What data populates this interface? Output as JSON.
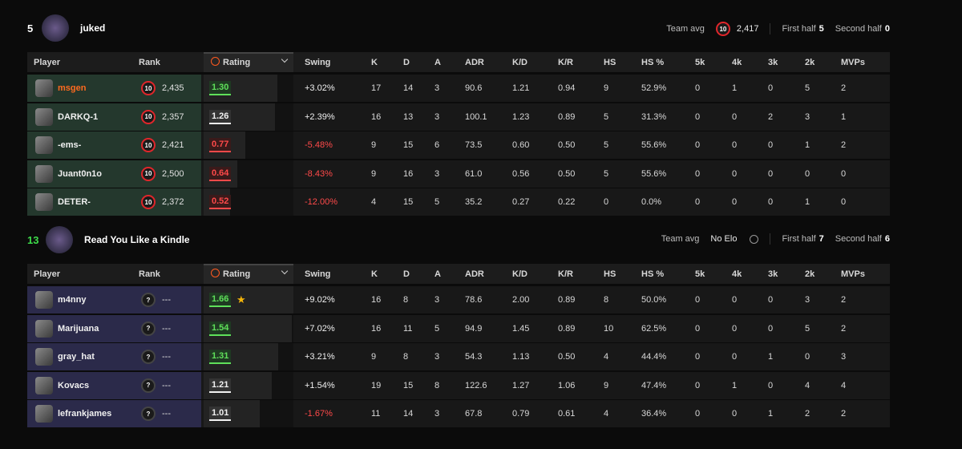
{
  "columns": [
    "Player",
    "Rank",
    "Rating",
    "Swing",
    "K",
    "D",
    "A",
    "ADR",
    "K/D",
    "K/R",
    "HS",
    "HS %",
    "5k",
    "4k",
    "3k",
    "2k",
    "MVPs"
  ],
  "teams": [
    {
      "score": "5",
      "name": "juked",
      "team_avg_label": "Team avg",
      "avg_rank": "10",
      "avg_elo": "2,417",
      "first_half_label": "First half",
      "first_half": "5",
      "second_half_label": "Second half",
      "second_half": "0",
      "rows": [
        {
          "player": "msgen",
          "rank": "10",
          "elo": "2,435",
          "rating": "1.30",
          "swing": "+3.02%",
          "stats": [
            "17",
            "14",
            "3",
            "90.6",
            "1.21",
            "0.94",
            "9",
            "52.9%",
            "0",
            "1",
            "0",
            "5",
            "2"
          ]
        },
        {
          "player": "DARKQ-1",
          "rank": "10",
          "elo": "2,357",
          "rating": "1.26",
          "swing": "+2.39%",
          "stats": [
            "16",
            "13",
            "3",
            "100.1",
            "1.23",
            "0.89",
            "5",
            "31.3%",
            "0",
            "0",
            "2",
            "3",
            "1"
          ]
        },
        {
          "player": "-ems-",
          "rank": "10",
          "elo": "2,421",
          "rating": "0.77",
          "swing": "-5.48%",
          "stats": [
            "9",
            "15",
            "6",
            "73.5",
            "0.60",
            "0.50",
            "5",
            "55.6%",
            "0",
            "0",
            "0",
            "1",
            "2"
          ]
        },
        {
          "player": "Juant0n1o",
          "rank": "10",
          "elo": "2,500",
          "rating": "0.64",
          "swing": "-8.43%",
          "stats": [
            "9",
            "16",
            "3",
            "61.0",
            "0.56",
            "0.50",
            "5",
            "55.6%",
            "0",
            "0",
            "0",
            "0",
            "0"
          ]
        },
        {
          "player": "DETER-",
          "rank": "10",
          "elo": "2,372",
          "rating": "0.52",
          "swing": "-12.00%",
          "stats": [
            "4",
            "15",
            "5",
            "35.2",
            "0.27",
            "0.22",
            "0",
            "0.0%",
            "0",
            "0",
            "0",
            "1",
            "0"
          ]
        }
      ]
    },
    {
      "score": "13",
      "name": "Read You Like a Kindle",
      "team_avg_label": "Team avg",
      "avg_elo": "No Elo",
      "first_half_label": "First half",
      "first_half": "7",
      "second_half_label": "Second half",
      "second_half": "6",
      "rows": [
        {
          "player": "m4nny",
          "rank": "?",
          "elo": "---",
          "rating": "1.66",
          "swing": "+9.02%",
          "stats": [
            "16",
            "8",
            "3",
            "78.6",
            "2.00",
            "0.89",
            "8",
            "50.0%",
            "0",
            "0",
            "0",
            "3",
            "2"
          ]
        },
        {
          "player": "Marijuana",
          "rank": "?",
          "elo": "---",
          "rating": "1.54",
          "swing": "+7.02%",
          "stats": [
            "16",
            "11",
            "5",
            "94.9",
            "1.45",
            "0.89",
            "10",
            "62.5%",
            "0",
            "0",
            "0",
            "5",
            "2"
          ]
        },
        {
          "player": "gray_hat",
          "rank": "?",
          "elo": "---",
          "rating": "1.31",
          "swing": "+3.21%",
          "stats": [
            "9",
            "8",
            "3",
            "54.3",
            "1.13",
            "0.50",
            "4",
            "44.4%",
            "0",
            "0",
            "1",
            "0",
            "3"
          ]
        },
        {
          "player": "Kovacs",
          "rank": "?",
          "elo": "---",
          "rating": "1.21",
          "swing": "+1.54%",
          "stats": [
            "19",
            "15",
            "8",
            "122.6",
            "1.27",
            "1.06",
            "9",
            "47.4%",
            "0",
            "1",
            "0",
            "4",
            "4"
          ]
        },
        {
          "player": "lefrankjames",
          "rank": "?",
          "elo": "---",
          "rating": "1.01",
          "swing": "-1.67%",
          "stats": [
            "11",
            "14",
            "3",
            "67.8",
            "0.79",
            "0.61",
            "4",
            "36.4%",
            "0",
            "0",
            "1",
            "2",
            "2"
          ]
        }
      ]
    }
  ]
}
